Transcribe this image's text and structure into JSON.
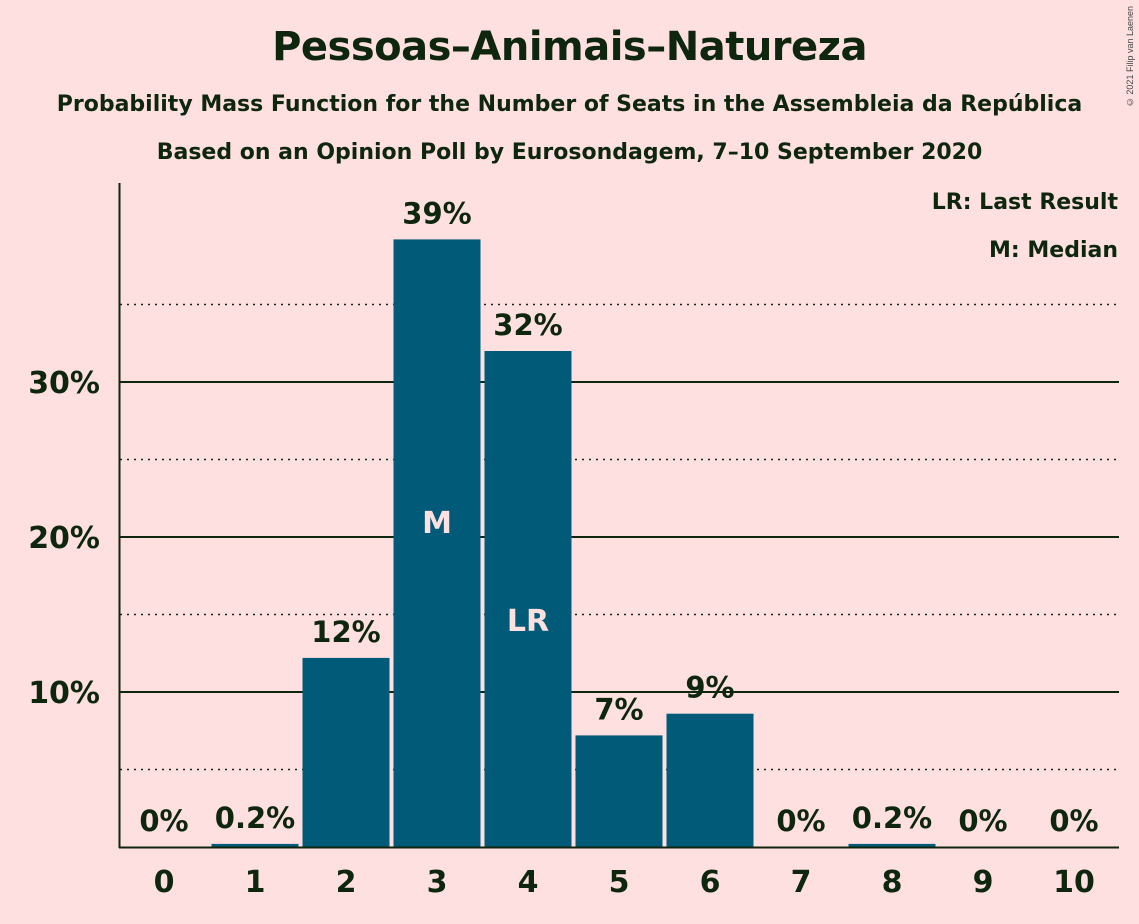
{
  "title": "Pessoas–Animais–Natureza",
  "subtitle1": "Probability Mass Function for the Number of Seats in the Assembleia da República",
  "subtitle2": "Based on an Opinion Poll by Eurosondagem, 7–10 September 2020",
  "copyright": "© 2021 Filip van Laenen",
  "legend": {
    "last_result": "LR: Last Result",
    "median": "M: Median"
  },
  "colors": {
    "background": "#FFE0E0",
    "bar": "#005A78",
    "text": "#0D260D"
  },
  "chart_data": {
    "type": "bar",
    "categories": [
      "0",
      "1",
      "2",
      "3",
      "4",
      "5",
      "6",
      "7",
      "8",
      "9",
      "10"
    ],
    "values": [
      0,
      0.2,
      12.2,
      39.2,
      32.0,
      7.2,
      8.6,
      0,
      0.2,
      0,
      0
    ],
    "labels": [
      "0%",
      "0.2%",
      "12%",
      "39%",
      "32%",
      "7%",
      "9%",
      "0%",
      "0.2%",
      "0%",
      "0%"
    ],
    "markers": {
      "3": "M",
      "4": "LR"
    },
    "y_ticks": [
      {
        "value": 10,
        "label": "10%"
      },
      {
        "value": 20,
        "label": "20%"
      },
      {
        "value": 30,
        "label": "30%"
      }
    ],
    "minor_gridlines": [
      5,
      15,
      25,
      35
    ],
    "ylim": [
      0,
      42
    ],
    "grid": true,
    "legend_position": "top-right"
  }
}
